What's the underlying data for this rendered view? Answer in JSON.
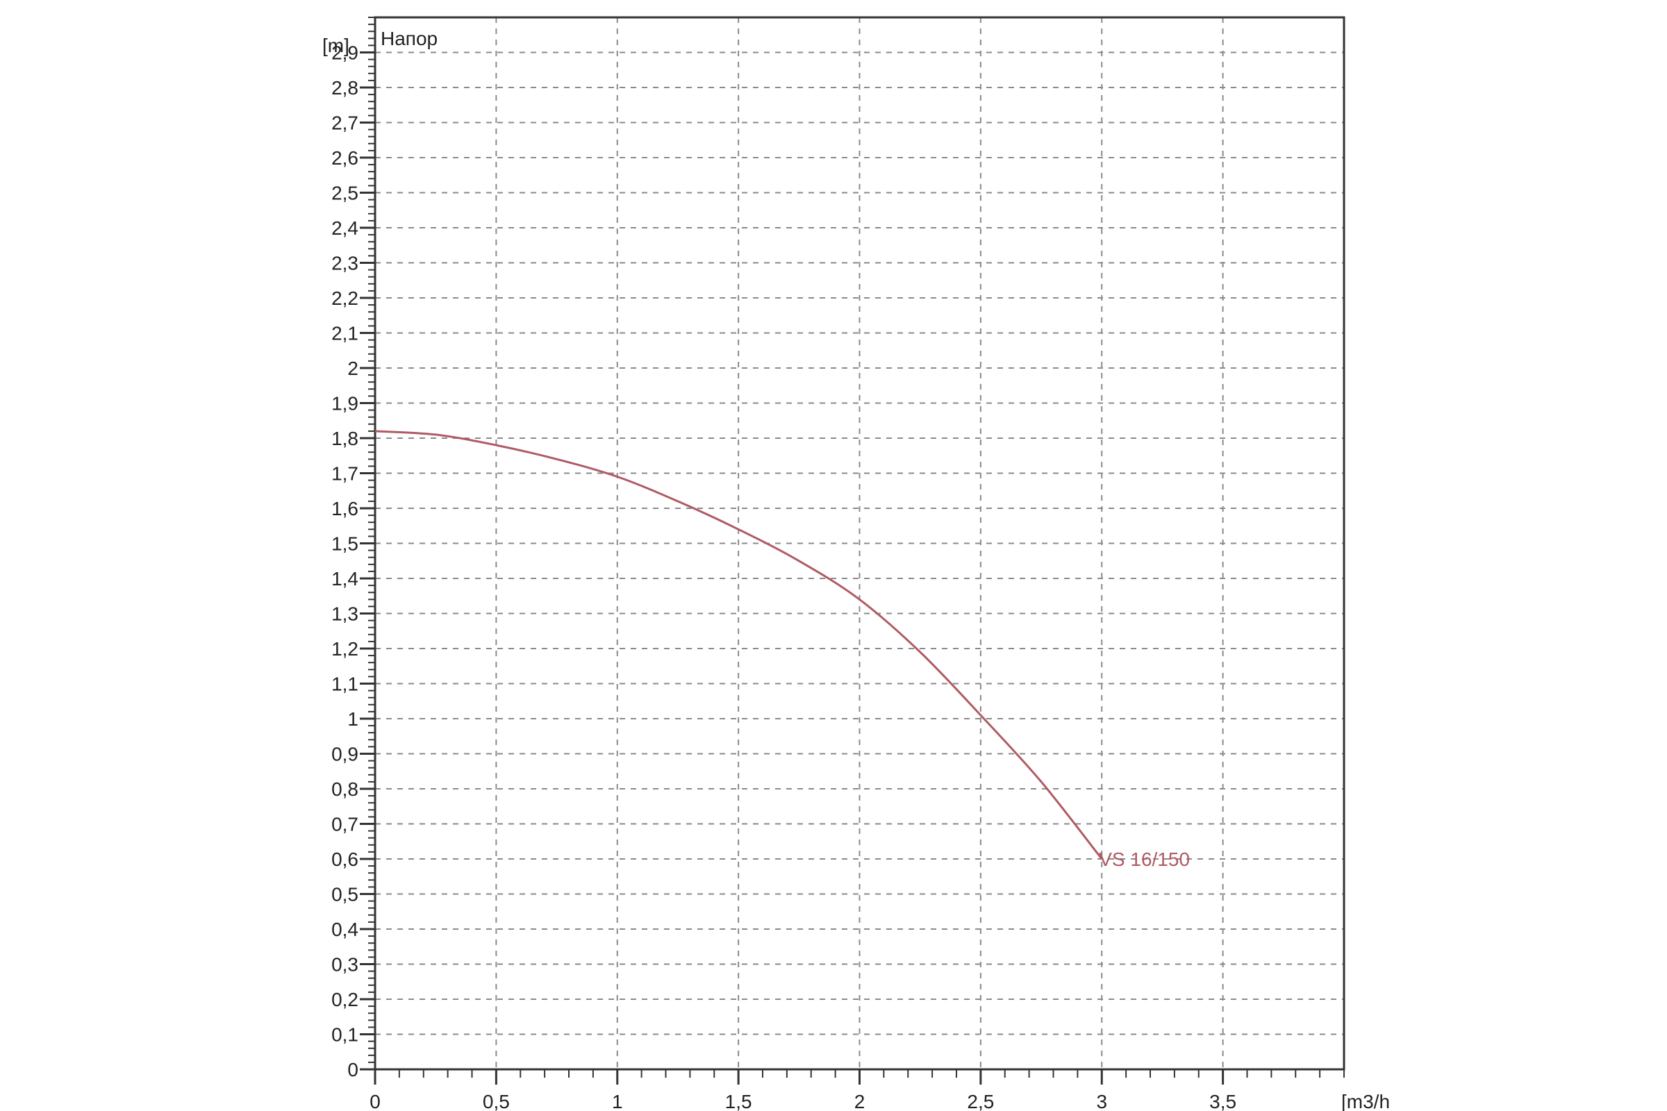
{
  "chart_data": {
    "type": "line",
    "title": "Напор",
    "xlabel": "[m3/h",
    "ylabel": "[m]",
    "xlim": [
      0,
      4
    ],
    "ylim": [
      0,
      3
    ],
    "x_ticks": [
      0,
      0.5,
      1,
      1.5,
      2,
      2.5,
      3,
      3.5
    ],
    "x_tick_labels": [
      "0",
      "0,5",
      "1",
      "1,5",
      "2",
      "2,5",
      "3",
      "3,5"
    ],
    "y_ticks": [
      0,
      0.1,
      0.2,
      0.3,
      0.4,
      0.5,
      0.6,
      0.7,
      0.8,
      0.9,
      1,
      1.1,
      1.2,
      1.3,
      1.4,
      1.5,
      1.6,
      1.7,
      1.8,
      1.9,
      2,
      2.1,
      2.2,
      2.3,
      2.4,
      2.5,
      2.6,
      2.7,
      2.8,
      2.9
    ],
    "y_tick_labels": [
      "0",
      "0,1",
      "0,2",
      "0,3",
      "0,4",
      "0,5",
      "0,6",
      "0,7",
      "0,8",
      "0,9",
      "1",
      "1,1",
      "1,2",
      "1,3",
      "1,4",
      "1,5",
      "1,6",
      "1,7",
      "1,8",
      "1,9",
      "2",
      "2,1",
      "2,2",
      "2,3",
      "2,4",
      "2,5",
      "2,6",
      "2,7",
      "2,8",
      "2,9"
    ],
    "grid": true,
    "series": [
      {
        "name": "VS 16/150",
        "color": "#b05a64",
        "x": [
          0,
          0.25,
          0.5,
          0.75,
          1,
          1.25,
          1.5,
          1.75,
          2,
          2.25,
          2.5,
          2.75,
          3
        ],
        "y": [
          1.82,
          1.81,
          1.78,
          1.74,
          1.69,
          1.62,
          1.54,
          1.45,
          1.34,
          1.19,
          1.01,
          0.82,
          0.6
        ]
      }
    ]
  }
}
